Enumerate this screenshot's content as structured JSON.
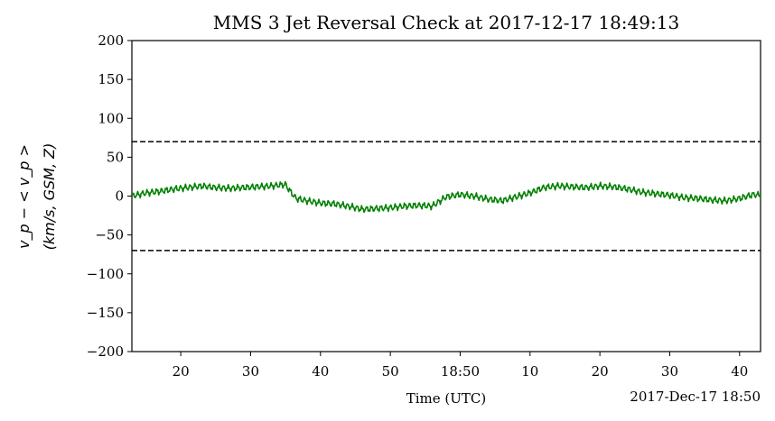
{
  "chart_data": {
    "type": "line",
    "title": "MMS 3 Jet Reversal Check at 2017-12-17 18:49:13",
    "xlabel": "Time (UTC)",
    "x_offset_label": "2017-Dec-17 18:50",
    "ylabel_line1": "v_p − < v_p >",
    "ylabel_line2": "(km/s, GSM, Z)",
    "xlim_seconds": [
      13,
      103
    ],
    "ylim": [
      -200,
      200
    ],
    "grid": false,
    "x_ticks": [
      {
        "t": 20,
        "label": "20"
      },
      {
        "t": 30,
        "label": "30"
      },
      {
        "t": 40,
        "label": "40"
      },
      {
        "t": 50,
        "label": "50"
      },
      {
        "t": 60,
        "label": "18:50"
      },
      {
        "t": 70,
        "label": "10"
      },
      {
        "t": 80,
        "label": "20"
      },
      {
        "t": 90,
        "label": "30"
      },
      {
        "t": 100,
        "label": "40"
      }
    ],
    "y_ticks": [
      {
        "v": 200,
        "label": "200"
      },
      {
        "v": 150,
        "label": "150"
      },
      {
        "v": 100,
        "label": "100"
      },
      {
        "v": 50,
        "label": "50"
      },
      {
        "v": 0,
        "label": "0"
      },
      {
        "v": -50,
        "label": "−50"
      },
      {
        "v": -100,
        "label": "−100"
      },
      {
        "v": -150,
        "label": "−150"
      },
      {
        "v": -200,
        "label": "−200"
      }
    ],
    "thresholds": [
      70,
      -70
    ],
    "threshold_style": "dashed black",
    "series": [
      {
        "color": "#008000",
        "x_seconds": [
          13,
          15,
          17,
          19,
          21,
          23,
          25,
          27,
          29,
          31,
          33,
          35,
          35.5,
          36.5,
          38,
          40,
          42,
          44,
          46,
          48,
          50,
          52,
          54,
          56,
          58,
          60,
          62,
          64,
          66,
          68,
          70,
          72,
          74,
          76,
          78,
          80,
          82,
          84,
          86,
          88,
          90,
          92,
          94,
          96,
          98,
          100,
          102,
          103
        ],
        "values": [
          0,
          4,
          6,
          9,
          11,
          13,
          11,
          10,
          11,
          12,
          13,
          15,
          8,
          -3,
          -6,
          -9,
          -10,
          -13,
          -17,
          -16,
          -15,
          -13,
          -12,
          -13,
          -1,
          2,
          0,
          -4,
          -6,
          -1,
          4,
          11,
          13,
          12,
          11,
          13,
          12,
          9,
          5,
          3,
          1,
          -2,
          -3,
          -5,
          -6,
          -3,
          2,
          1
        ]
      }
    ]
  }
}
